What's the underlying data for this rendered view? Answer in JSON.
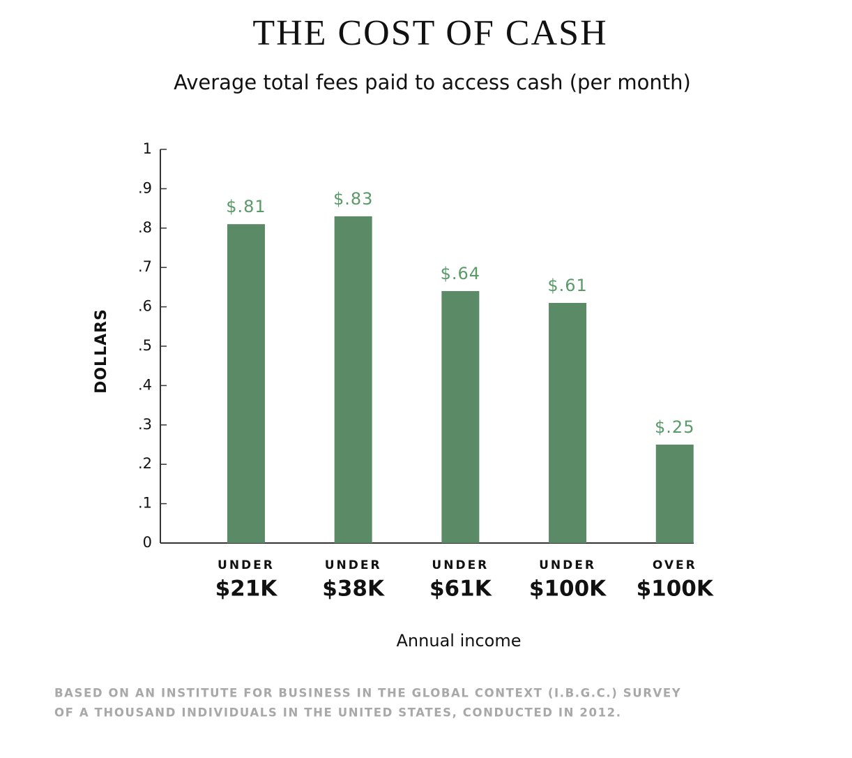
{
  "chart_data": {
    "type": "bar",
    "title": "THE COST OF CASH",
    "subtitle": "Average total fees paid to access cash (per month)",
    "y_label": "DOLLARS",
    "x_label": "Annual income",
    "categories": [
      [
        "UNDER",
        "$21K"
      ],
      [
        "UNDER",
        "$38K"
      ],
      [
        "UNDER",
        "$61K"
      ],
      [
        "UNDER",
        "$100K"
      ],
      [
        "OVER",
        "$100K"
      ]
    ],
    "values": [
      0.81,
      0.83,
      0.64,
      0.61,
      0.25
    ],
    "value_labels": [
      "$.81",
      "$.83",
      "$.64",
      "$.61",
      "$.25"
    ],
    "color": "#5b8a66",
    "label_color": "#5a9a68",
    "ylim": [
      0,
      1
    ],
    "yticks": [
      0,
      {
        "value": 0.1,
        "label": ".1"
      },
      {
        "value": 0.2,
        "label": ".2"
      },
      {
        "value": 0.3,
        "label": ".3"
      },
      {
        "value": 0.4,
        "label": ".4"
      },
      {
        "value": 0.5,
        "label": ".5"
      },
      {
        "value": 0.6,
        "label": ".6"
      },
      {
        "value": 0.7,
        "label": ".7"
      },
      {
        "value": 0.8,
        "label": ".8"
      },
      {
        "value": 0.9,
        "label": ".9"
      },
      1
    ],
    "grid": false,
    "note": [
      "BASED ON AN INSTITUTE FOR BUSINESS IN THE GLOBAL CONTEXT (I.B.G.C.) SURVEY",
      "OF A THOUSAND INDIVIDUALS IN THE UNITED STATES, CONDUCTED IN 2012."
    ]
  }
}
